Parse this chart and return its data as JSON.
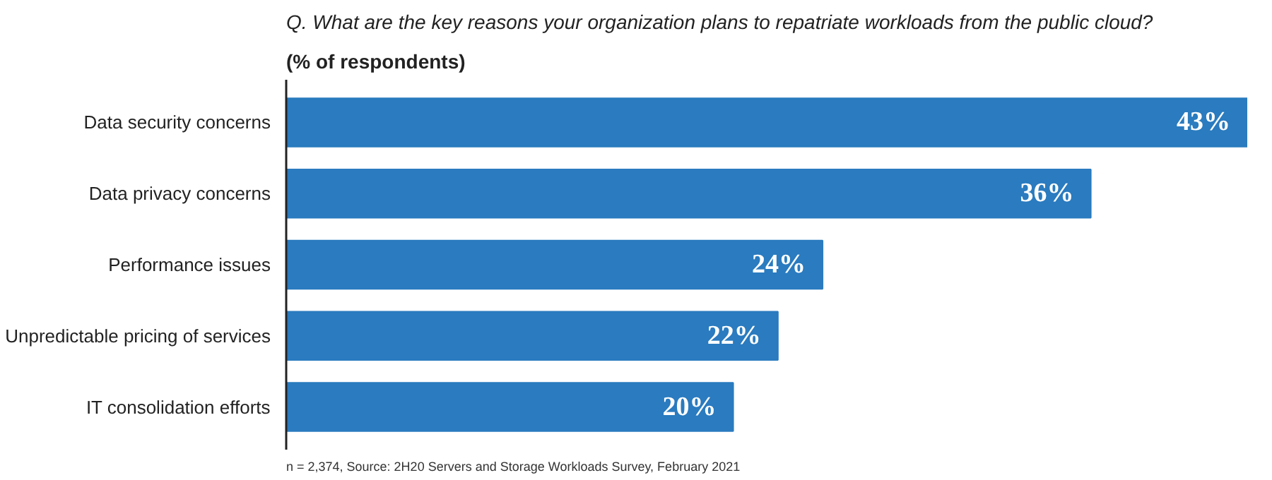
{
  "chart_data": {
    "type": "bar",
    "orientation": "horizontal",
    "title": "Q. What are the key reasons your organization plans to repatriate workloads from the public cloud?",
    "subtitle": "(% of respondents)",
    "categories": [
      "Data security concerns",
      "Data privacy concerns",
      "Performance issues",
      "Unpredictable pricing of services",
      "IT consolidation efforts"
    ],
    "values": [
      43,
      36,
      24,
      22,
      20
    ],
    "value_labels": [
      "43%",
      "36%",
      "24%",
      "22%",
      "20%"
    ],
    "color": "#2a7bbf",
    "annotations": [
      "n = 2,374, Source: 2H20 Servers and Storage Workloads Survey, February 2021"
    ]
  }
}
